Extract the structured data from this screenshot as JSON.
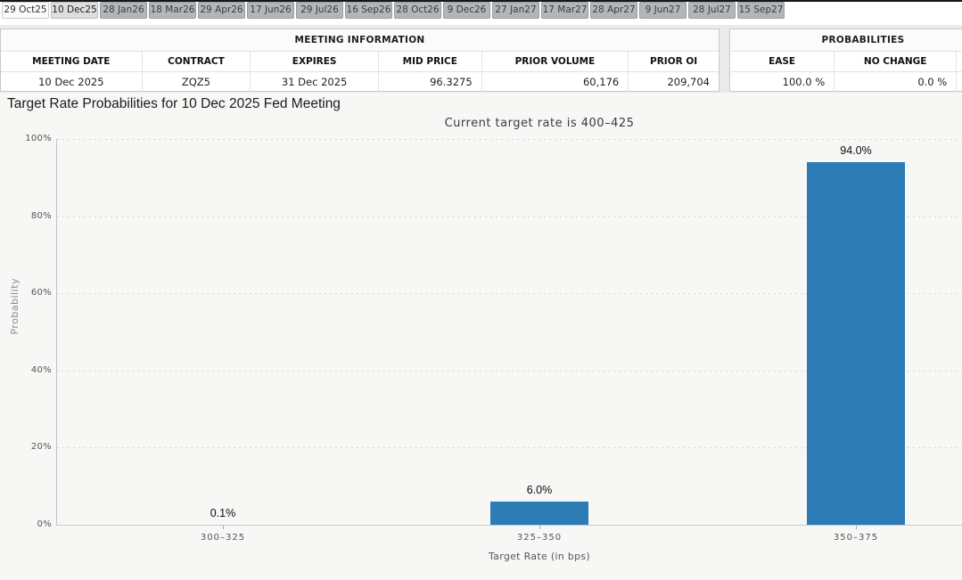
{
  "tabs": {
    "items": [
      {
        "label": "29 Oct25",
        "state": "front"
      },
      {
        "label": "10 Dec25",
        "state": "selected"
      },
      {
        "label": "28 Jan26",
        "state": "default"
      },
      {
        "label": "18 Mar26",
        "state": "default"
      },
      {
        "label": "29 Apr26",
        "state": "default"
      },
      {
        "label": "17 Jun26",
        "state": "default"
      },
      {
        "label": "29 Jul26",
        "state": "default"
      },
      {
        "label": "16 Sep26",
        "state": "default"
      },
      {
        "label": "28 Oct26",
        "state": "default"
      },
      {
        "label": "9 Dec26",
        "state": "default"
      },
      {
        "label": "27 Jan27",
        "state": "default"
      },
      {
        "label": "17 Mar27",
        "state": "default"
      },
      {
        "label": "28 Apr27",
        "state": "default"
      },
      {
        "label": "9 Jun27",
        "state": "default"
      },
      {
        "label": "28 Jul27",
        "state": "default"
      },
      {
        "label": "15 Sep27",
        "state": "default"
      }
    ]
  },
  "meeting_info": {
    "title": "MEETING INFORMATION",
    "columns": [
      "MEETING DATE",
      "CONTRACT",
      "EXPIRES",
      "MID PRICE",
      "PRIOR VOLUME",
      "PRIOR OI"
    ],
    "values": [
      "10 Dec 2025",
      "ZQZ5",
      "31 Dec 2025",
      "96.3275",
      "60,176",
      "209,704"
    ]
  },
  "probabilities": {
    "title": "PROBABILITIES",
    "columns": [
      "EASE",
      "NO CHANGE",
      ""
    ],
    "values": [
      "100.0 %",
      "0.0 %",
      ""
    ]
  },
  "chart_data": {
    "type": "bar",
    "title": "Target Rate Probabilities for 10 Dec 2025 Fed Meeting",
    "subtitle": "Current target rate is 400–425",
    "categories": [
      "300–325",
      "325–350",
      "350–375"
    ],
    "values": [
      0.1,
      6.0,
      94.0
    ],
    "bar_labels": [
      "0.1%",
      "6.0%",
      "94.0%"
    ],
    "xlabel": "Target Rate (in bps)",
    "ylabel": "Probability",
    "ylim": [
      0,
      100
    ],
    "yticks": [
      "0%",
      "20%",
      "40%",
      "60%",
      "80%",
      "100%"
    ],
    "bar_color": "#2d7cb5",
    "grid": "dotted-horizontal",
    "legend": "none"
  }
}
